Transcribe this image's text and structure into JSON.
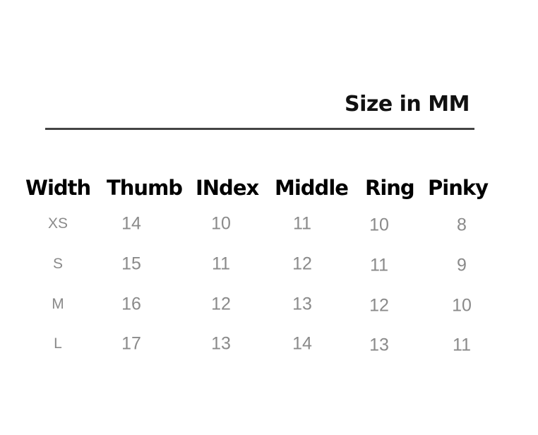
{
  "title": "Size in MM",
  "columns": [
    "Width",
    "Thumb",
    "INdex",
    "Middle",
    "Ring",
    "Pinky"
  ],
  "rows": [
    [
      "XS",
      "14",
      "10",
      "11",
      "10",
      "8"
    ],
    [
      "S",
      "15",
      "11",
      "12",
      "11",
      "9"
    ],
    [
      "M",
      "16",
      "12",
      "13",
      "12",
      "10"
    ],
    [
      "L",
      "17",
      "13",
      "14",
      "13",
      "11"
    ]
  ],
  "colors": {
    "header": "#000000",
    "values": "#8a8a8a",
    "rule": "#444444"
  }
}
